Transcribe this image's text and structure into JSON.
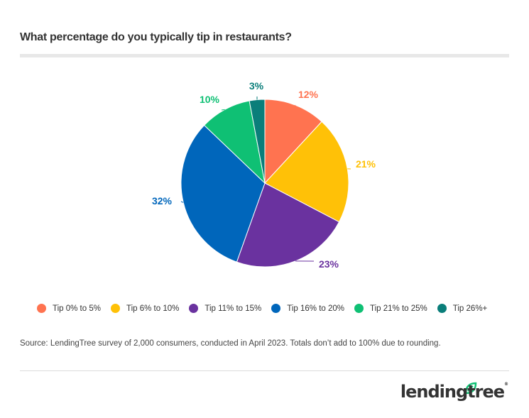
{
  "header": {
    "title": "What percentage do you typically tip in restaurants?"
  },
  "chart_data": {
    "type": "pie",
    "title": "What percentage do you typically tip in restaurants?",
    "categories": [
      "Tip 0% to 5%",
      "Tip 6% to 10%",
      "Tip 11% to 15%",
      "Tip 16% to 20%",
      "Tip 21% to 25%",
      "Tip 26%+"
    ],
    "values": [
      12,
      21,
      23,
      32,
      10,
      3
    ],
    "labels": [
      "12%",
      "21%",
      "23%",
      "32%",
      "10%",
      "3%"
    ],
    "colors": [
      "#ff7350",
      "#ffc107",
      "#6a329f",
      "#0066bb",
      "#0fc074",
      "#0a7e7a"
    ],
    "start_angle": "12 o'clock, clockwise",
    "legend_position": "bottom"
  },
  "legend": {
    "items": [
      {
        "label": "Tip 0% to 5%",
        "color": "#ff7350"
      },
      {
        "label": "Tip 6% to 10%",
        "color": "#ffc107"
      },
      {
        "label": "Tip 11% to 15%",
        "color": "#6a329f"
      },
      {
        "label": "Tip 16% to 20%",
        "color": "#0066bb"
      },
      {
        "label": "Tip 21% to 25%",
        "color": "#0fc074"
      },
      {
        "label": "Tip 26%+",
        "color": "#0a7e7a"
      }
    ]
  },
  "footer": {
    "source": "Source: LendingTree survey of 2,000 consumers, conducted in April 2023. Totals don’t add to 100% due to rounding.",
    "logo_text": "lendingtree",
    "logo_mark": "®"
  }
}
